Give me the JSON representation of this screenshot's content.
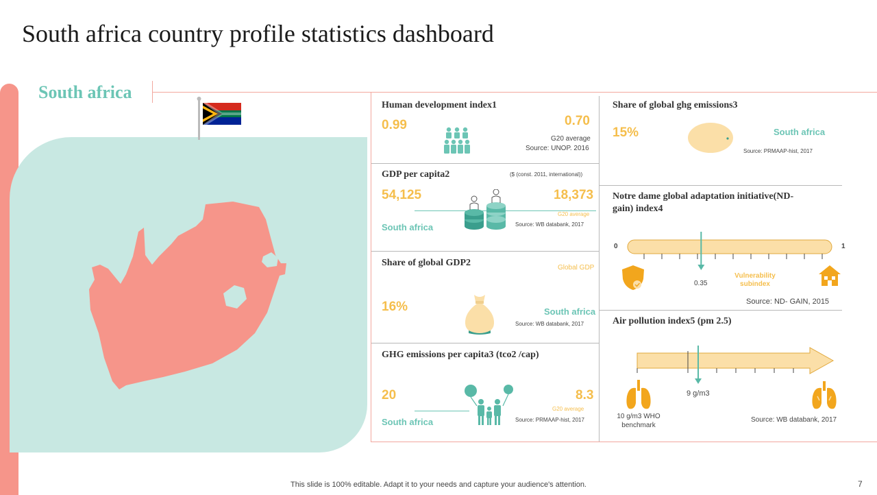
{
  "title": "South africa country profile statistics dashboard",
  "country": "South africa",
  "hdi": {
    "title": "Human development index1",
    "value": "0.99",
    "g20_value": "0.70",
    "g20_label": "G20 average",
    "source": "Source: UNOP.  2016"
  },
  "gdp_pc": {
    "title": "GDP per capita2",
    "note": "($ (const. 2011, international))",
    "value": "54,125",
    "g20_value": "18,373",
    "g20_label": "G20 average",
    "country_label": "South africa",
    "source": "Source: WB databank, 2017"
  },
  "gdp_share": {
    "title": "Share of global GDP2",
    "global_label": "Global GDP",
    "value": "16%",
    "country_label": "South africa",
    "source": "Source: WB databank, 2017"
  },
  "ghg_pc": {
    "title": "GHG emissions per capita3 (tco2 /cap)",
    "value": "20",
    "g20_value": "8.3",
    "g20_label": "G20 average",
    "country_label": "South africa",
    "source": "Source: PRMAAP-hist, 2017"
  },
  "ghg_share": {
    "title": "Share of global ghg emissions3",
    "value": "15%",
    "country_label": "South africa",
    "source": "Source: PRMAAP-hist, 2017"
  },
  "ndgain": {
    "title_line1": "Notre dame global adaptation initiative(ND-",
    "title_line2": "gain) index4",
    "min": "0",
    "max": "1",
    "value_label": "0.35",
    "value": 0.35,
    "vuln_line1": "Vulnerability",
    "vuln_line2": "subindex",
    "source": "Source: ND- GAIN,  2015"
  },
  "air": {
    "title": "Air pollution index5 (pm 2.5)",
    "value_label": "9 g/m3",
    "who_line1": "10 g/m3  WHO",
    "who_line2": "benchmark",
    "source": "Source: WB databank, 2017"
  },
  "footer": "This slide is 100% editable. Adapt it to your needs and capture your audience's attention.",
  "page_number": "7",
  "colors": {
    "coral": "#f6958a",
    "teal": "#6cc5b5",
    "yellow": "#f5be4c",
    "mint": "#c8e8e2",
    "peach": "#fbdfa8",
    "orange": "#f2a61d"
  }
}
